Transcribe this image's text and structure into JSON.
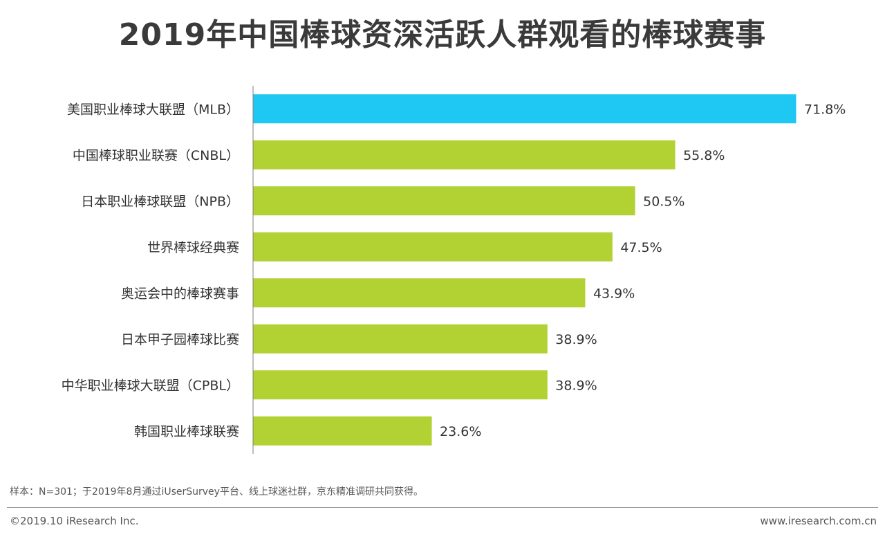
{
  "title": "2019年中国棒球资深活跃人群观看的棒球赛事",
  "chart_data": {
    "type": "bar",
    "orientation": "horizontal",
    "categories": [
      "美国职业棒球大联盟（MLB）",
      "中国棒球职业联赛（CNBL）",
      "日本职业棒球联盟（NPB）",
      "世界棒球经典赛",
      "奥运会中的棒球赛事",
      "日本甲子园棒球比赛",
      "中华职业棒球大联盟（CPBL）",
      "韩国职业棒球联赛"
    ],
    "values": [
      71.8,
      55.8,
      50.5,
      47.5,
      43.9,
      38.9,
      38.9,
      23.6
    ],
    "labels": [
      "71.8%",
      "55.8%",
      "50.5%",
      "47.5%",
      "43.9%",
      "38.9%",
      "38.9%",
      "23.6%"
    ],
    "unit": "%",
    "xlim": [
      0,
      100
    ],
    "highlight_index": 0,
    "colors": {
      "highlight": "#1fc8f3",
      "default": "#b2d234"
    },
    "grid": false,
    "legend": "none"
  },
  "note": "样本：N=301；于2019年8月通过iUserSurvey平台、线上球迷社群，京东精准调研共同获得。",
  "copyright": "©2019.10 iResearch Inc.",
  "site": "www.iresearch.com.cn"
}
